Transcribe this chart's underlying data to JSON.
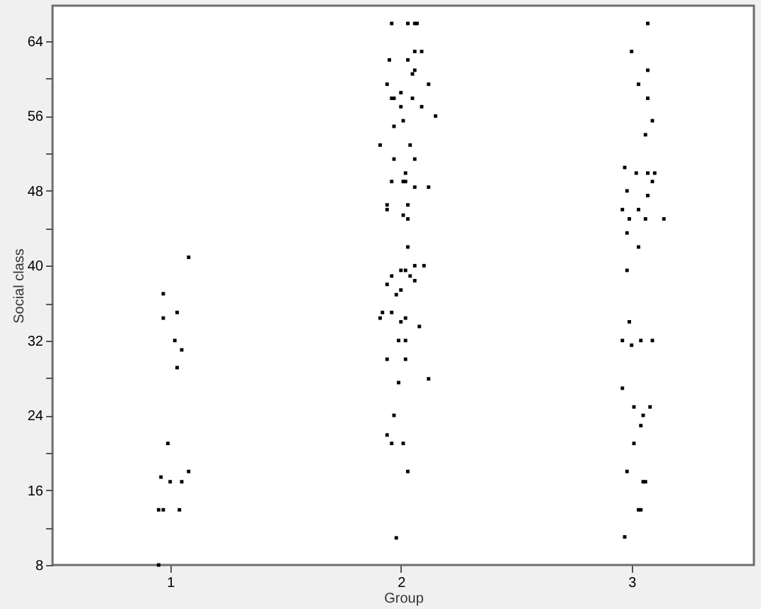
{
  "chart_data": {
    "type": "scatter",
    "xlabel": "Group",
    "ylabel": "Social class",
    "xlim": [
      0.49,
      3.53
    ],
    "xticks": [
      1,
      2,
      3
    ],
    "ylim": [
      8,
      67.8
    ],
    "yticks": [
      8,
      {
        "value": 12,
        "label": null
      },
      16,
      {
        "value": 20,
        "label": null
      },
      24,
      {
        "value": 28,
        "label": null
      },
      32,
      {
        "value": 36,
        "label": null
      },
      40,
      {
        "value": 44,
        "label": null
      },
      48,
      {
        "value": 52,
        "label": null
      },
      56,
      {
        "value": 60,
        "label": null
      },
      64
    ],
    "grid": false,
    "marker": "square",
    "series": [
      {
        "color": "#000000",
        "x": [
          1.08,
          0.97,
          1.03,
          0.97,
          1.02,
          1.05,
          1.03,
          0.99,
          1.08,
          0.96,
          1.0,
          1.05,
          0.95,
          0.97,
          1.04,
          0.95,
          1.96,
          2.03,
          2.06,
          2.07,
          2.06,
          2.09,
          1.95,
          2.03,
          2.06,
          2.05,
          1.94,
          2.12,
          2.0,
          1.96,
          1.97,
          2.05,
          2.0,
          2.09,
          2.15,
          2.01,
          1.97,
          1.91,
          2.04,
          1.97,
          2.06,
          2.02,
          1.96,
          2.01,
          2.02,
          2.06,
          2.12,
          1.94,
          2.03,
          1.94,
          2.01,
          2.03,
          2.03,
          2.06,
          2.1,
          2.0,
          2.02,
          1.96,
          2.04,
          2.06,
          1.94,
          2.0,
          1.98,
          1.92,
          1.96,
          1.91,
          2.02,
          2.0,
          2.08,
          1.99,
          2.02,
          1.94,
          2.02,
          2.12,
          1.99,
          1.97,
          1.94,
          1.96,
          2.01,
          2.03,
          1.98,
          3.07,
          3.0,
          3.07,
          3.03,
          3.07,
          3.09,
          3.06,
          2.97,
          3.02,
          3.07,
          3.1,
          3.09,
          2.98,
          3.07,
          2.96,
          3.03,
          2.99,
          3.06,
          3.14,
          2.98,
          3.03,
          2.98,
          2.99,
          2.96,
          3.04,
          3.09,
          3.0,
          2.96,
          3.01,
          3.08,
          3.05,
          3.04,
          3.01,
          2.98,
          3.05,
          3.06,
          3.03,
          3.04,
          2.97
        ],
        "values": [
          40.9,
          37.0,
          35.0,
          34.4,
          32.0,
          31.0,
          29.1,
          21.0,
          18.0,
          17.4,
          16.9,
          16.9,
          13.9,
          13.9,
          13.9,
          8.0,
          65.9,
          65.9,
          65.9,
          65.9,
          62.9,
          62.9,
          62.0,
          62.0,
          60.9,
          60.5,
          59.4,
          59.4,
          58.5,
          57.9,
          57.9,
          57.9,
          57.0,
          57.0,
          56.0,
          55.5,
          54.9,
          52.9,
          52.9,
          51.4,
          51.4,
          49.9,
          49.0,
          49.0,
          49.0,
          48.4,
          48.4,
          46.5,
          46.5,
          46.0,
          45.4,
          45.0,
          42.0,
          40.0,
          40.0,
          39.5,
          39.5,
          38.9,
          38.9,
          38.4,
          38.0,
          37.4,
          36.9,
          35.0,
          35.0,
          34.4,
          34.4,
          34.0,
          33.5,
          32.0,
          32.0,
          30.0,
          30.0,
          27.9,
          27.5,
          24.0,
          21.9,
          21.0,
          21.0,
          18.0,
          10.9,
          65.9,
          62.9,
          60.9,
          59.4,
          57.9,
          55.5,
          54.0,
          50.5,
          49.9,
          49.9,
          49.9,
          49.0,
          48.0,
          47.5,
          46.0,
          46.0,
          45.0,
          45.0,
          45.0,
          43.5,
          42.0,
          39.5,
          34.0,
          32.0,
          32.0,
          32.0,
          31.5,
          26.9,
          24.9,
          24.9,
          24.0,
          22.9,
          21.0,
          18.0,
          16.9,
          16.9,
          13.9,
          13.9,
          11.0
        ]
      }
    ]
  }
}
